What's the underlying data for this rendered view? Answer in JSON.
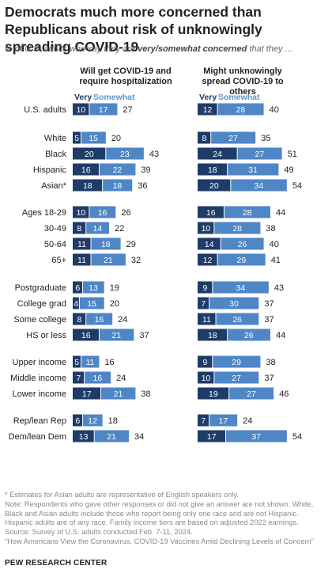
{
  "title": "Democrats much more concerned than Republicans about risk of unknowingly spreading COVID-19",
  "subtitle_parts": [
    "% of U.S. adults who say they are ",
    "very/somewhat concerned",
    " that they ..."
  ],
  "colors": {
    "very": "#1f3b68",
    "somewhat": "#4f86c6"
  },
  "chart_data": {
    "type": "bar",
    "stacked": true,
    "orientation": "horizontal",
    "legend": [
      "Very",
      "Somewhat"
    ],
    "categories": [
      "U.S. adults",
      "White",
      "Black",
      "Hispanic",
      "Asian*",
      "Ages 18-29",
      "30-49",
      "50-64",
      "65+",
      "Postgraduate",
      "College grad",
      "Some college",
      "HS or less",
      "Upper income",
      "Middle income",
      "Lower income",
      "Rep/lean Rep",
      "Dem/lean Dem"
    ],
    "panels": [
      {
        "title": "Will get COVID-19 and require hospitalization",
        "very": [
          10,
          5,
          20,
          16,
          18,
          10,
          8,
          11,
          11,
          6,
          4,
          8,
          16,
          5,
          7,
          17,
          6,
          13
        ],
        "somewhat": [
          17,
          15,
          23,
          22,
          18,
          16,
          14,
          18,
          21,
          13,
          15,
          16,
          21,
          11,
          16,
          21,
          12,
          21
        ],
        "net": [
          27,
          20,
          43,
          39,
          36,
          26,
          22,
          29,
          32,
          19,
          20,
          24,
          37,
          16,
          24,
          38,
          18,
          34
        ]
      },
      {
        "title": "Might unknowingly spread COVID-19 to others",
        "very": [
          12,
          8,
          24,
          18,
          20,
          16,
          10,
          14,
          12,
          9,
          7,
          11,
          18,
          9,
          10,
          19,
          7,
          17
        ],
        "somewhat": [
          28,
          27,
          27,
          31,
          34,
          28,
          28,
          26,
          29,
          34,
          30,
          26,
          26,
          29,
          27,
          27,
          17,
          37
        ],
        "net": [
          40,
          35,
          51,
          49,
          54,
          44,
          38,
          40,
          41,
          43,
          37,
          37,
          44,
          38,
          37,
          46,
          24,
          54
        ]
      }
    ]
  },
  "notes": [
    "* Estimates for Asian adults are representative of English speakers only.",
    "Note: Respondents who gave other responses or did not give an answer are not shown. White, Black and Asian adults include those who report being only one race and are not Hispanic. Hispanic adults are of any race. Family income tiers are based on adjusted 2022 earnings.",
    "Source: Survey of U.S. adults conducted Feb. 7-11, 2024.",
    "“How Americans View the Coronavirus, COVID-19 Vaccines Amid Declining Levels of Concern”"
  ],
  "source_label": "PEW RESEARCH CENTER"
}
